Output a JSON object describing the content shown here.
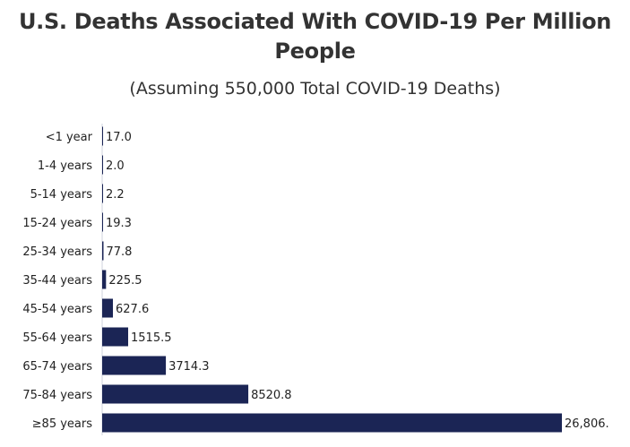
{
  "chart_data": {
    "type": "bar",
    "orientation": "horizontal",
    "title_line1": "U.S. Deaths Associated With COVID-19 Per Million",
    "title_line2": "People",
    "subtitle": "(Assuming 550,000 Total COVID-19 Deaths)",
    "categories": [
      "<1 year",
      "1-4 years",
      "5-14 years",
      "15-24 years",
      "25-34 years",
      "35-44 years",
      "45-54 years",
      "55-64 years",
      "65-74 years",
      "75-84 years",
      "≥85 years"
    ],
    "values": [
      17.0,
      2.0,
      2.2,
      19.3,
      77.8,
      225.5,
      627.6,
      1515.5,
      3714.3,
      8520.8,
      26806
    ],
    "value_labels": [
      "17.0",
      "2.0",
      "2.2",
      "19.3",
      "77.8",
      "225.5",
      "627.6",
      "1515.5",
      "3714.3",
      "8520.8",
      "26,806."
    ],
    "xlim": [
      0,
      26806
    ],
    "xlabel": "",
    "ylabel": "",
    "grid": false,
    "bar_color": "#1b2555"
  }
}
